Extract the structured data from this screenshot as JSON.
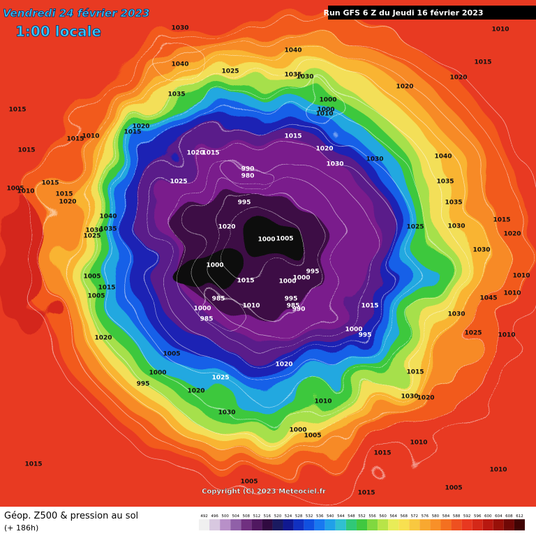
{
  "header": {
    "valid_date": "Vendredi 24 février 2023",
    "local_time": "1:00 locale",
    "run": "Run GFS 6 Z du Jeudi 16 février 2023"
  },
  "map": {
    "pressure_labels": [
      "1030",
      "1040",
      "1025",
      "1035",
      "1015",
      "1040",
      "1035",
      "1030",
      "1020",
      "1020",
      "1015",
      "1010",
      "1000",
      "1000",
      "1010",
      "1015",
      "1020",
      "1030",
      "1030",
      "1040",
      "1035",
      "1035",
      "1025",
      "1030",
      "1015",
      "1020",
      "1030",
      "1010",
      "1010",
      "1045",
      "1030",
      "1025",
      "1010",
      "990",
      "980",
      "995",
      "1020",
      "1000",
      "1005",
      "1000",
      "995",
      "1000",
      "1000",
      "1015",
      "985",
      "1000",
      "985",
      "1010",
      "995",
      "985",
      "990",
      "1015",
      "1000",
      "995",
      "1020",
      "1005",
      "1000",
      "995",
      "1025",
      "1020",
      "1030",
      "1020",
      "1015",
      "1030",
      "1020",
      "1010",
      "1000",
      "1005",
      "1010",
      "1015",
      "1015",
      "1010",
      "1005",
      "1015",
      "1005",
      "1010",
      "1015",
      "1015",
      "1020",
      "1015",
      "1020",
      "1015",
      "1025",
      "1005",
      "1010",
      "1015",
      "1015",
      "1020",
      "1040",
      "1035",
      "1030",
      "1025",
      "1005",
      "1015",
      "1005"
    ],
    "copyright": "Copyright (C) 2023 Meteociel.fr"
  },
  "footer": {
    "title": "Géop. Z500 & pression au sol",
    "lead": "(+ 186h)"
  },
  "scale": {
    "labels": [
      "492",
      "496",
      "500",
      "504",
      "508",
      "512",
      "516",
      "520",
      "524",
      "528",
      "532",
      "536",
      "540",
      "544",
      "548",
      "552",
      "556",
      "560",
      "564",
      "568",
      "572",
      "576",
      "580",
      "584",
      "588",
      "592",
      "596",
      "600",
      "604",
      "608",
      "612"
    ]
  }
}
